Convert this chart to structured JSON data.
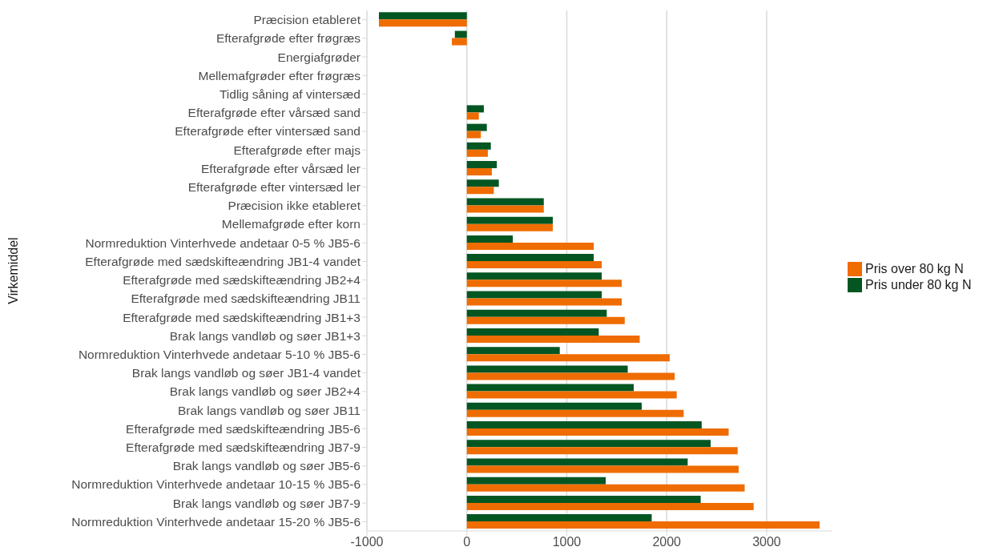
{
  "chart_data": {
    "type": "bar",
    "orientation": "horizontal",
    "ylabel": "Virkemiddel",
    "categories": [
      "Præcision etableret",
      "Efterafgrøde efter frøgræs",
      "Energiafgrøder",
      "Mellemafgrøder efter frøgræs",
      "Tidlig såning af vintersæd",
      "Efterafgrøde efter vårsæd sand",
      "Efterafgrøde efter vintersæd sand",
      "Efterafgrøde efter majs",
      "Efterafgrøde efter vårsæd ler",
      "Efterafgrøde efter vintersæd ler",
      "Præcision ikke etableret",
      "Mellemafgrøde efter korn",
      "Normreduktion Vinterhvede andetaar 0-5 % JB5-6",
      "Efterafgrøde med sædskifteændring JB1-4 vandet",
      "Efterafgrøde med sædskifteændring JB2+4",
      "Efterafgrøde med sædskifteændring JB11",
      "Efterafgrøde med sædskifteændring JB1+3",
      "Brak langs vandløb og søer JB1+3",
      "Normreduktion Vinterhvede andetaar 5-10 % JB5-6",
      "Brak langs vandløb og søer JB1-4 vandet",
      "Brak langs vandløb og søer JB2+4",
      "Brak langs vandløb og søer JB11",
      "Efterafgrøde med sædskifteændring JB5-6",
      "Efterafgrøde med sædskifteændring JB7-9",
      "Brak langs vandløb og søer JB5-6",
      "Normreduktion Vinterhvede andetaar 10-15 % JB5-6",
      "Brak langs vandløb og søer JB7-9",
      "Normreduktion Vinterhvede andetaar 15-20 % JB5-6"
    ],
    "series": [
      {
        "name": "Pris over 80 kg N",
        "color": "#ef6c00",
        "values": [
          -880,
          -150,
          null,
          null,
          null,
          120,
          140,
          210,
          250,
          270,
          770,
          860,
          1270,
          1350,
          1550,
          1550,
          1580,
          1730,
          2030,
          2080,
          2100,
          2170,
          2620,
          2710,
          2720,
          2780,
          2870,
          3530
        ]
      },
      {
        "name": "Pris under 80 kg N",
        "color": "#035622",
        "values": [
          -880,
          -120,
          null,
          null,
          null,
          170,
          200,
          240,
          300,
          320,
          770,
          860,
          460,
          1270,
          1350,
          1350,
          1400,
          1320,
          930,
          1610,
          1670,
          1750,
          2350,
          2440,
          2210,
          1390,
          2340,
          1850
        ]
      }
    ],
    "xlim": [
      -1000,
      3650
    ],
    "xticks": [
      -1000,
      0,
      1000,
      2000,
      3000
    ],
    "grid": "x",
    "legend": "right"
  }
}
